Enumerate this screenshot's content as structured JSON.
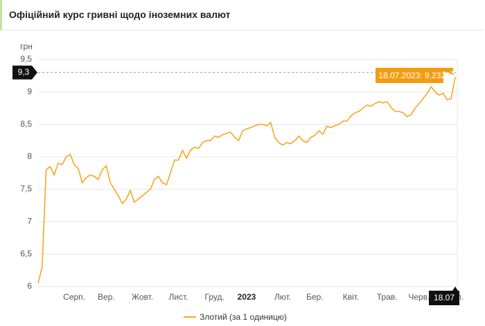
{
  "header": {
    "title": "Офіційний курс гривні щодо іноземних валют"
  },
  "chart_data": {
    "type": "line",
    "y_label": "грн",
    "categories": [
      null,
      null,
      null,
      null,
      null,
      null,
      null,
      null,
      null,
      "Серп.",
      null,
      null,
      null,
      null,
      null,
      null,
      null,
      "Вер.",
      null,
      null,
      null,
      null,
      null,
      null,
      null,
      null,
      "Жовт.",
      null,
      null,
      null,
      null,
      null,
      null,
      null,
      null,
      "Лист.",
      null,
      null,
      null,
      null,
      null,
      null,
      null,
      null,
      "Груд.",
      null,
      null,
      null,
      null,
      null,
      null,
      null,
      "2023",
      null,
      null,
      null,
      null,
      null,
      null,
      null,
      null,
      "Лют.",
      null,
      null,
      null,
      null,
      null,
      null,
      null,
      "Бер.",
      null,
      null,
      null,
      null,
      null,
      null,
      null,
      null,
      "Квіт.",
      null,
      null,
      null,
      null,
      null,
      null,
      null,
      null,
      "Трав.",
      null,
      null,
      null,
      null,
      null,
      null,
      null,
      "Черв.",
      null,
      null,
      null,
      null,
      null,
      null,
      null,
      null,
      "Лип."
    ],
    "series": [
      {
        "name": "Злотий (за 1 одиницю)",
        "color": "#f5a623",
        "values": [
          6.05,
          6.3,
          7.8,
          7.85,
          7.72,
          7.9,
          7.88,
          8.0,
          8.04,
          7.88,
          7.82,
          7.6,
          7.68,
          7.72,
          7.7,
          7.65,
          7.8,
          7.86,
          7.6,
          7.5,
          7.4,
          7.28,
          7.35,
          7.48,
          7.3,
          7.35,
          7.4,
          7.45,
          7.5,
          7.65,
          7.7,
          7.6,
          7.57,
          7.75,
          7.95,
          7.95,
          8.1,
          7.98,
          8.1,
          8.15,
          8.13,
          8.22,
          8.25,
          8.25,
          8.32,
          8.3,
          8.34,
          8.36,
          8.38,
          8.3,
          8.25,
          8.4,
          8.43,
          8.45,
          8.48,
          8.5,
          8.5,
          8.48,
          8.53,
          8.3,
          8.22,
          8.18,
          8.22,
          8.2,
          8.25,
          8.32,
          8.25,
          8.22,
          8.3,
          8.33,
          8.4,
          8.35,
          8.47,
          8.45,
          8.48,
          8.5,
          8.55,
          8.55,
          8.63,
          8.68,
          8.7,
          8.75,
          8.8,
          8.78,
          8.82,
          8.85,
          8.83,
          8.85,
          8.76,
          8.7,
          8.7,
          8.68,
          8.62,
          8.65,
          8.75,
          8.82,
          8.9,
          8.98,
          9.08,
          9.0,
          8.95,
          8.98,
          8.88,
          8.9,
          9.2329
        ]
      }
    ],
    "ylim": [
      6,
      9.5
    ],
    "yticks": [
      6,
      {
        "value": 6.5,
        "label": "6,5"
      },
      7,
      {
        "value": 7.5,
        "label": "7,5"
      },
      8,
      {
        "value": 8.5,
        "label": "8,5"
      },
      9,
      {
        "value": 9.5,
        "label": "9,5"
      }
    ],
    "grid": true,
    "crosshair": {
      "y": {
        "value": 9.3,
        "label": "9,3"
      },
      "x_label": "18.07"
    },
    "tooltip": "18.07.2023: 9,2329"
  }
}
